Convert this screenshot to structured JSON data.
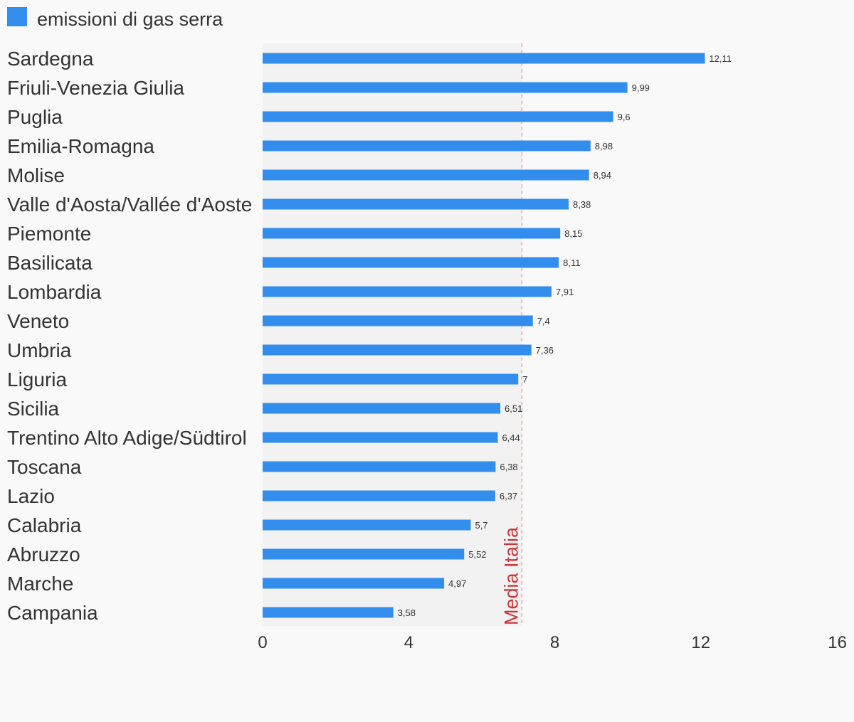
{
  "legend": {
    "label": "emissioni di gas serra",
    "color": "#338ded"
  },
  "colors": {
    "bar": "#338ded",
    "reference": "#d0343a",
    "band": "#f2f2f2",
    "text": "#333333",
    "background": "#f9f9f9"
  },
  "chart_data": {
    "type": "bar",
    "orientation": "horizontal",
    "title": "",
    "xlabel": "",
    "ylabel": "",
    "xlim": [
      0,
      16
    ],
    "xticks": [
      0,
      4,
      8,
      12,
      16
    ],
    "grid": false,
    "legend_position": "top-left",
    "categories": [
      "Sardegna",
      "Friuli-Venezia Giulia",
      "Puglia",
      "Emilia-Romagna",
      "Molise",
      "Valle d'Aosta/Vallée d'Aoste",
      "Piemonte",
      "Basilicata",
      "Lombardia",
      "Veneto",
      "Umbria",
      "Liguria",
      "Sicilia",
      "Trentino Alto Adige/Südtirol",
      "Toscana",
      "Lazio",
      "Calabria",
      "Abruzzo",
      "Marche",
      "Campania"
    ],
    "series": [
      {
        "name": "emissioni di gas serra",
        "values": [
          12.11,
          9.99,
          9.6,
          8.98,
          8.94,
          8.38,
          8.15,
          8.11,
          7.91,
          7.4,
          7.36,
          7,
          6.51,
          6.44,
          6.38,
          6.37,
          5.7,
          5.52,
          4.97,
          3.58
        ],
        "data_labels": [
          "12,11",
          "9,99",
          "9,6",
          "8,98",
          "8,94",
          "8,38",
          "8,15",
          "8,11",
          "7,91",
          "7,4",
          "7,36",
          "7",
          "6,51",
          "6,44",
          "6,38",
          "6,37",
          "5,7",
          "5,52",
          "4,97",
          "3,58"
        ]
      }
    ],
    "reference_line": {
      "label": "Media Italia",
      "value": 7.1
    }
  }
}
